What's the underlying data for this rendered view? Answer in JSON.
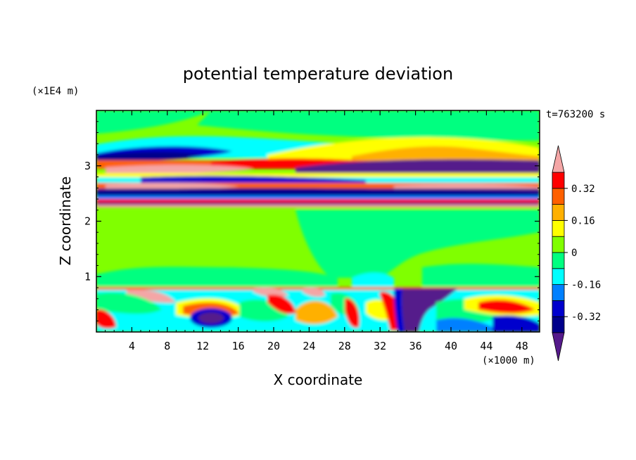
{
  "chart_data": {
    "type": "heatmap",
    "title": "potential temperature deviation",
    "xlabel": "X coordinate",
    "ylabel": "Z coordinate",
    "x_unit": "(×1000 m)",
    "y_unit": "(×1E4 m)",
    "time_label": "t=763200 s",
    "xlim": [
      0,
      50
    ],
    "ylim": [
      0,
      4
    ],
    "x_ticks": [
      4,
      8,
      12,
      16,
      20,
      24,
      28,
      32,
      36,
      40,
      44,
      48
    ],
    "y_ticks": [
      1,
      2,
      3
    ],
    "colorbar": {
      "levels": [
        -0.48,
        -0.4,
        -0.32,
        -0.24,
        -0.16,
        -0.08,
        0,
        0.08,
        0.16,
        0.24,
        0.32,
        0.4,
        0.48
      ],
      "colors": [
        "#551a8b",
        "#00008b",
        "#0000cd",
        "#0080ff",
        "#00ffff",
        "#00ff80",
        "#80ff00",
        "#ffff00",
        "#ffb000",
        "#ff6000",
        "#ff0000",
        "#f4a6a6"
      ],
      "tick_labels": [
        "0.32",
        "0.16",
        "0",
        "-0.16",
        "-0.32"
      ],
      "tick_values": [
        0.32,
        0.16,
        0,
        -0.16,
        -0.32
      ],
      "extend": "both",
      "placement": "right"
    },
    "features": [
      {
        "region": "upper band",
        "z_range": [
          2.3,
          3.25
        ],
        "description": "alternating positive and negative horizontal layers"
      },
      {
        "region": "lower boundary layer",
        "z_range": [
          0,
          0.8
        ],
        "description": "turbulent eddies with strong negative plume near x=35"
      }
    ]
  }
}
